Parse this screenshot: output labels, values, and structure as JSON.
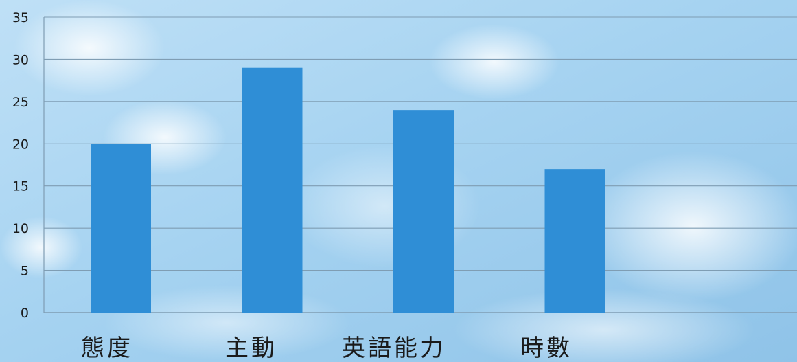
{
  "chart_data": {
    "type": "bar",
    "categories": [
      "態度",
      "主動",
      "英語能力",
      "時數"
    ],
    "values": [
      20,
      29,
      24,
      17
    ],
    "ylim": [
      0,
      35
    ],
    "yticks": [
      0,
      5,
      10,
      15,
      20,
      25,
      30,
      35
    ],
    "grid": true,
    "legend": "none",
    "colors": {
      "bar": "#2f8ed6",
      "grid": "#7f9db3",
      "sky_top": "#9ccbec",
      "sky_bottom": "#d8ecf8"
    }
  }
}
